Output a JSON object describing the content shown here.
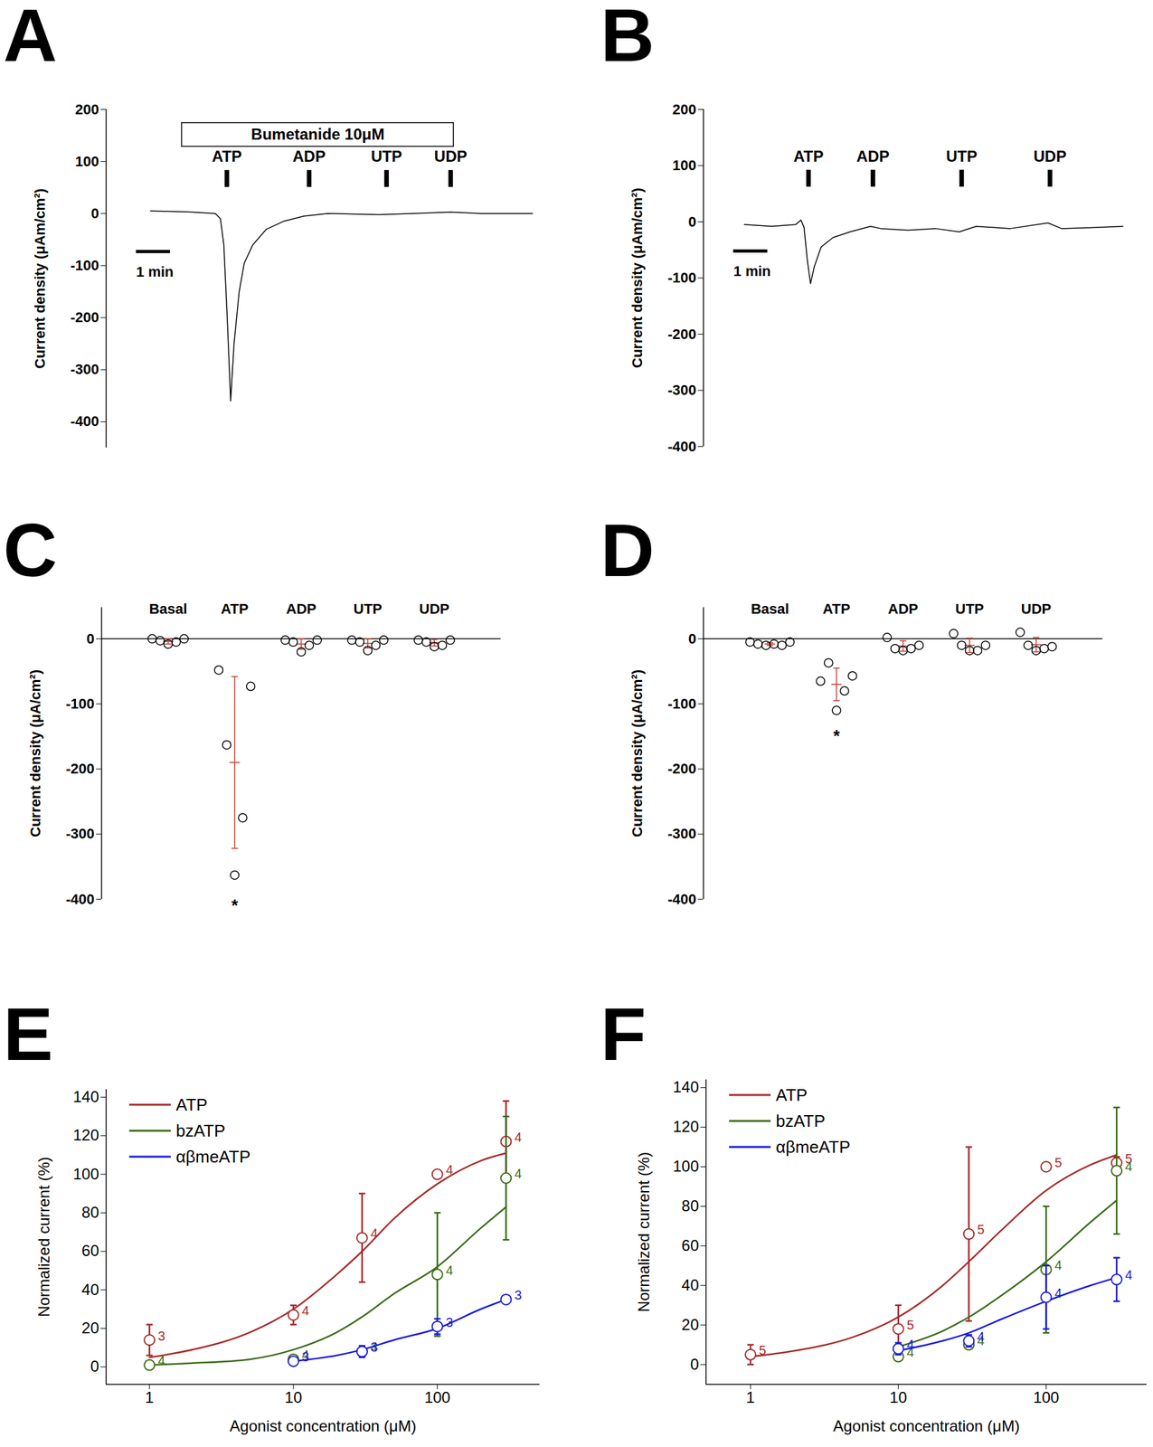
{
  "chart_data": [
    {
      "title": "A",
      "type": "line",
      "y_label": "Current density (μAm/cm²)",
      "tick_labels": "y",
      "color": "#000000",
      "xlim": [
        0,
        12.6
      ],
      "ylim": [
        -450,
        200
      ],
      "yticks": [
        -400,
        -300,
        -200,
        -100,
        0,
        100,
        200
      ],
      "x": [
        1.3,
        2.5,
        3.2,
        3.35,
        3.45,
        3.55,
        3.65,
        3.75,
        3.9,
        4.05,
        4.3,
        4.7,
        5.2,
        5.8,
        6.5,
        8,
        9,
        10.1,
        11,
        12.5
      ],
      "values": [
        5,
        3,
        0,
        -10,
        -60,
        -200,
        -360,
        -250,
        -150,
        -95,
        -60,
        -30,
        -15,
        -5,
        0,
        -2,
        0,
        3,
        0,
        0
      ],
      "treatment": {
        "label": "Bumetanide 10μM",
        "x_start": 2.22,
        "x_end": 10.19
      },
      "stimuli": [
        {
          "label": "ATP",
          "x": 3.54
        },
        {
          "label": "ADP",
          "x": 5.95
        },
        {
          "label": "UTP",
          "x": 8.22
        },
        {
          "label": "UDP",
          "x": 10.1
        }
      ],
      "scale_bar": {
        "label": "1 min",
        "length": 1
      }
    },
    {
      "title": "B",
      "type": "line",
      "y_label": "Current density (μAm/cm²)",
      "tick_labels": "y",
      "color": "#000000",
      "xlim": [
        0,
        12.6
      ],
      "ylim": [
        -400,
        200
      ],
      "yticks": [
        -400,
        -300,
        -200,
        -100,
        0,
        100,
        200
      ],
      "x": [
        1.2,
        2.0,
        2.7,
        2.86,
        2.95,
        3.05,
        3.14,
        3.25,
        3.45,
        3.8,
        4.3,
        4.9,
        5.2,
        6,
        6.8,
        7.5,
        8,
        9,
        10.1,
        10.5,
        11.5,
        12.3
      ],
      "values": [
        -5,
        -8,
        -5,
        3,
        -10,
        -70,
        -110,
        -80,
        -45,
        -28,
        -18,
        -8,
        -12,
        -15,
        -12,
        -18,
        -8,
        -12,
        -2,
        -12,
        -10,
        -8
      ],
      "stimuli": [
        {
          "label": "ATP",
          "x": 3.08
        },
        {
          "label": "ADP",
          "x": 4.97
        },
        {
          "label": "UTP",
          "x": 7.57
        },
        {
          "label": "UDP",
          "x": 10.16
        }
      ],
      "scale_bar": {
        "label": "1 min",
        "length": 1
      }
    },
    {
      "title": "C",
      "type": "scatter",
      "y_label": "Current density (μA/cm²)",
      "color": "#000000",
      "ylim": [
        -400,
        48
      ],
      "yticks": [
        -400,
        -300,
        -200,
        -100,
        0
      ],
      "categories": [
        "Basal",
        "ATP",
        "ADP",
        "UTP",
        "UDP"
      ],
      "points": [
        [
          0,
          -3,
          -8,
          -5,
          0
        ],
        [
          -48,
          -163,
          -363,
          -275,
          -73
        ],
        [
          -2,
          -5,
          -20,
          -10,
          -2
        ],
        [
          -2,
          -5,
          -18,
          -10,
          -2
        ],
        [
          -2,
          -5,
          -12,
          -10,
          -2
        ]
      ],
      "means": [
        -4,
        -190,
        -8,
        -7,
        -6
      ],
      "errors": [
        4,
        132,
        8,
        7,
        5
      ],
      "annotations": [
        {
          "text": "*",
          "category": "ATP",
          "y": -410
        }
      ]
    },
    {
      "title": "D",
      "type": "scatter",
      "y_label": "Current density (μA/cm²)",
      "color": "#000000",
      "ylim": [
        -400,
        48
      ],
      "yticks": [
        -400,
        -300,
        -200,
        -100,
        0
      ],
      "categories": [
        "Basal",
        "ATP",
        "ADP",
        "UTP",
        "UDP"
      ],
      "points": [
        [
          -5,
          -8,
          -10,
          -8,
          -10,
          -5
        ],
        [
          -65,
          -37,
          -110,
          -80,
          -57
        ],
        [
          2,
          -15,
          -18,
          -15,
          -10
        ],
        [
          8,
          -10,
          -18,
          -18,
          -10
        ],
        [
          10,
          -10,
          -18,
          -15,
          -12
        ]
      ],
      "means": [
        -8,
        -70,
        -11,
        -10,
        -9
      ],
      "errors": [
        2,
        25,
        8,
        11,
        11
      ],
      "annotations": [
        {
          "text": "*",
          "category": "ATP",
          "y": -150
        }
      ]
    },
    {
      "title": "E",
      "type": "line",
      "x_label": "Agonist concentration (μM)",
      "y_label": "Normalized current (%)",
      "log": "x",
      "xlim": [
        0.5,
        515
      ],
      "ylim": [
        -9,
        144
      ],
      "xticks": [
        1,
        10,
        100
      ],
      "yticks": [
        0,
        20,
        40,
        60,
        80,
        100,
        120,
        140
      ],
      "legend": "top-left",
      "series": [
        {
          "name": "ATP",
          "color": "#a52a2a",
          "x": [
            1,
            10,
            30,
            100,
            300
          ],
          "values": [
            14,
            27,
            67,
            100,
            117
          ],
          "errors": [
            8,
            5,
            23,
            0,
            21
          ],
          "n": [
            3,
            4,
            4,
            4,
            4
          ],
          "fit_x": [
            1,
            2,
            5,
            10,
            20,
            30,
            50,
            100,
            200,
            300
          ],
          "fit_values": [
            5,
            9,
            18,
            30,
            48,
            60,
            77,
            95,
            107,
            111
          ]
        },
        {
          "name": "bzATP",
          "color": "#3a6b16",
          "x": [
            1,
            10,
            30,
            100,
            300
          ],
          "values": [
            1,
            4,
            8,
            48,
            98
          ],
          "errors": [
            2,
            1,
            2,
            32,
            32
          ],
          "n": [
            4,
            4,
            4,
            4,
            4
          ],
          "fit_x": [
            1,
            2,
            5,
            10,
            20,
            30,
            50,
            100,
            200,
            300
          ],
          "fit_values": [
            1,
            2,
            4,
            9,
            18,
            26,
            38,
            52,
            72,
            83
          ]
        },
        {
          "name": "αβmeATP",
          "color": "#1a1adb",
          "x": [
            10,
            30,
            100,
            300
          ],
          "values": [
            3,
            8,
            21,
            35
          ],
          "errors": [
            1,
            3,
            4,
            2
          ],
          "n": [
            3,
            3,
            3,
            3
          ],
          "fit_x": [
            10,
            20,
            30,
            50,
            100,
            200,
            300
          ],
          "fit_values": [
            3,
            6,
            9,
            14,
            20,
            30,
            35
          ]
        }
      ]
    },
    {
      "title": "F",
      "type": "line",
      "x_label": "Agonist concentration (μM)",
      "y_label": "Normalized current (%)",
      "log": "x",
      "xlim": [
        0.5,
        480
      ],
      "ylim": [
        -10,
        144
      ],
      "xticks": [
        1,
        10,
        100
      ],
      "yticks": [
        0,
        20,
        40,
        60,
        80,
        100,
        120,
        140
      ],
      "legend": "top-left",
      "series": [
        {
          "name": "ATP",
          "color": "#a52a2a",
          "x": [
            1,
            10,
            30,
            100,
            300
          ],
          "values": [
            5,
            18,
            66,
            100,
            102
          ],
          "errors": [
            5,
            12,
            44,
            0,
            3
          ],
          "n": [
            5,
            5,
            5,
            5,
            5
          ],
          "fit_x": [
            1,
            2,
            5,
            10,
            20,
            30,
            50,
            100,
            200,
            300
          ],
          "fit_values": [
            4,
            7,
            14,
            24,
            40,
            52,
            68,
            88,
            101,
            106
          ]
        },
        {
          "name": "bzATP",
          "color": "#3a6b16",
          "x": [
            10,
            30,
            100,
            300
          ],
          "values": [
            4,
            10,
            48,
            98
          ],
          "errors": [
            2,
            2,
            32,
            32
          ],
          "n": [
            4,
            4,
            4,
            4
          ],
          "fit_x": [
            10,
            20,
            30,
            50,
            100,
            200,
            300
          ],
          "fit_values": [
            9,
            17,
            24,
            35,
            52,
            72,
            83
          ]
        },
        {
          "name": "αβmeATP",
          "color": "#1a1adb",
          "x": [
            10,
            30,
            100,
            300
          ],
          "values": [
            8,
            12,
            34,
            43
          ],
          "errors": [
            3,
            3,
            16,
            11
          ],
          "n": [
            4,
            4,
            4,
            4
          ],
          "fit_x": [
            10,
            20,
            30,
            50,
            100,
            200,
            300
          ],
          "fit_values": [
            7,
            12,
            16,
            23,
            32,
            40,
            44
          ]
        }
      ]
    }
  ]
}
